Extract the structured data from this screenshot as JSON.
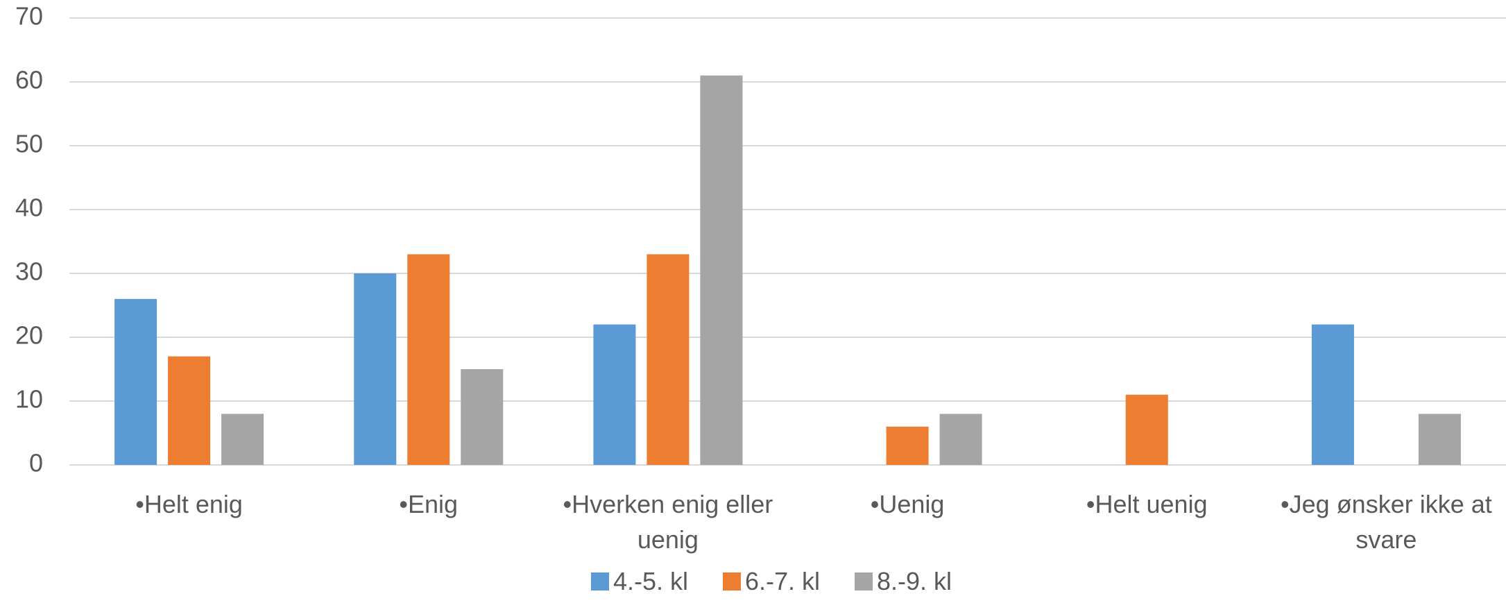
{
  "chart_data": {
    "type": "bar",
    "title": "",
    "xlabel": "",
    "ylabel": "",
    "ylim": [
      0,
      70
    ],
    "yticks": [
      0,
      10,
      20,
      30,
      40,
      50,
      60,
      70
    ],
    "grid": true,
    "legend_position": "bottom",
    "categories": [
      [
        "•Helt enig"
      ],
      [
        "•Enig"
      ],
      [
        "•Hverken enig eller",
        "uenig"
      ],
      [
        "•Uenig"
      ],
      [
        "•Helt uenig"
      ],
      [
        "•Jeg ønsker ikke at",
        "svare"
      ]
    ],
    "series": [
      {
        "name": "4.-5. kl",
        "color": "#5B9BD5",
        "values": [
          26,
          30,
          22,
          0,
          0,
          22
        ]
      },
      {
        "name": "6.-7. kl",
        "color": "#ED7D31",
        "values": [
          17,
          33,
          33,
          6,
          11,
          0
        ]
      },
      {
        "name": "8.-9. kl",
        "color": "#A5A5A5",
        "values": [
          8,
          15,
          61,
          8,
          0,
          8
        ]
      }
    ]
  }
}
